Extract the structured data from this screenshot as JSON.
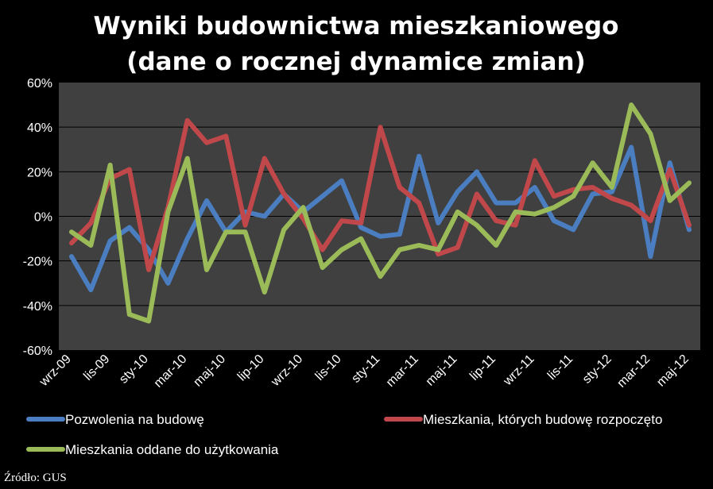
{
  "chart_data": {
    "type": "line",
    "title": [
      "Wyniki budownictwa mieszkaniowego",
      "(dane o rocznej dynamice zmian)"
    ],
    "ylim": [
      -60,
      60
    ],
    "yticks": [
      -60,
      -40,
      -20,
      0,
      20,
      40,
      60
    ],
    "ytick_labels": [
      "-60%",
      "-40%",
      "-20%",
      "0%",
      "20%",
      "40%",
      "60%"
    ],
    "y_unit": "%",
    "grid": true,
    "legend_position": "bottom",
    "x": [
      "wrz-09",
      "paź-09",
      "lis-09",
      "gru-09",
      "sty-10",
      "lut-10",
      "mar-10",
      "kwi-10",
      "maj-10",
      "cze-10",
      "lip-10",
      "sie-10",
      "wrz-10",
      "paź-10",
      "lis-10",
      "gru-10",
      "sty-11",
      "lut-11",
      "mar-11",
      "kwi-11",
      "maj-11",
      "cze-11",
      "lip-11",
      "sie-11",
      "wrz-11",
      "paź-11",
      "lis-11",
      "gru-11",
      "sty-12",
      "lut-12",
      "mar-12",
      "kwi-12",
      "maj-12"
    ],
    "xtick_labels": [
      "wrz-09",
      "lis-09",
      "sty-10",
      "mar-10",
      "maj-10",
      "lip-10",
      "wrz-10",
      "lis-10",
      "sty-11",
      "mar-11",
      "maj-11",
      "lip-11",
      "wrz-11",
      "lis-11",
      "sty-12",
      "mar-12",
      "maj-12"
    ],
    "series": [
      {
        "name": "Pozwolenia na budowę",
        "color": "#4a7ec0",
        "values": [
          -18,
          -33,
          -11,
          -5,
          -15,
          -30,
          -10,
          7,
          -7,
          2,
          0,
          10,
          2,
          9,
          16,
          -5,
          -9,
          -8,
          27,
          -3,
          11,
          20,
          6,
          6,
          13,
          -2,
          -6,
          10,
          11,
          31,
          -18,
          24,
          -6
        ]
      },
      {
        "name": "Mieszkania, których budowę rozpoczęto",
        "color": "#c0474a",
        "values": [
          -12,
          -3,
          17,
          21,
          -24,
          4,
          43,
          33,
          36,
          -4,
          26,
          10,
          -1,
          -15,
          -2,
          -3,
          40,
          13,
          6,
          -17,
          -14,
          10,
          -2,
          -4,
          25,
          9,
          12,
          13,
          8,
          5,
          -2,
          21,
          -4
        ]
      },
      {
        "name": "Mieszkania oddane do użytkowania",
        "color": "#9bbb59",
        "values": [
          -7,
          -13,
          23,
          -44,
          -47,
          2,
          26,
          -24,
          -7,
          -7,
          -34,
          -6,
          4,
          -23,
          -15,
          -10,
          -27,
          -15,
          -13,
          -15,
          2,
          -4,
          -13,
          2,
          1,
          4,
          9,
          24,
          13,
          50,
          37,
          7,
          15
        ]
      }
    ],
    "source": "Źródło: GUS"
  }
}
